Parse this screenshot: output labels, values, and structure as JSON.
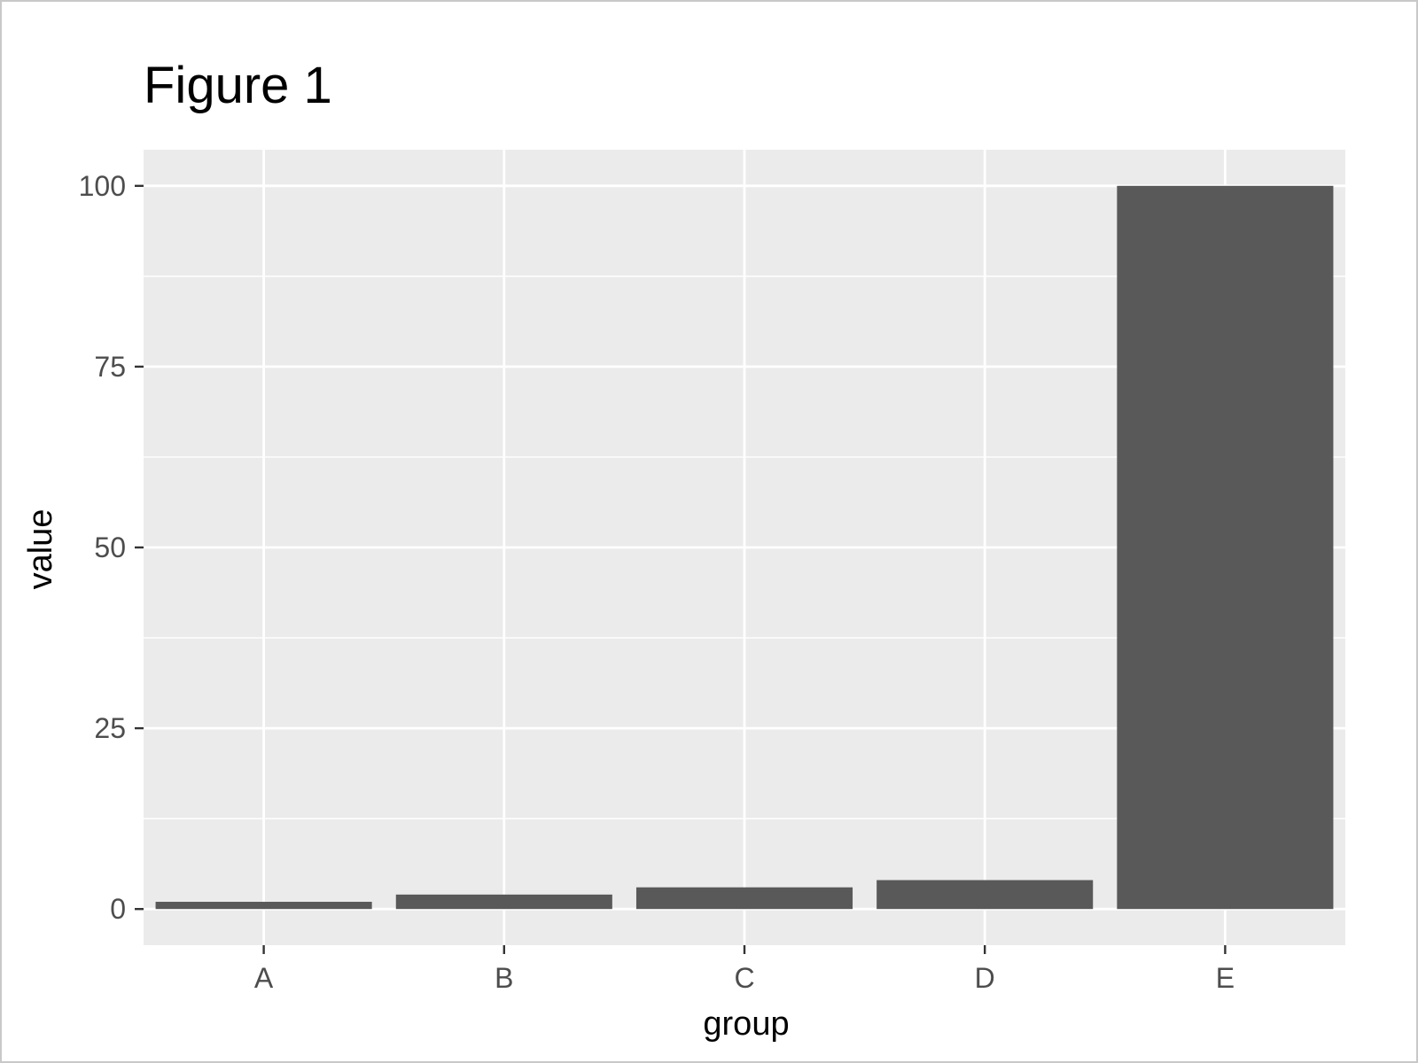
{
  "chart_data": {
    "type": "bar",
    "title": "Figure 1",
    "xlabel": "group",
    "ylabel": "value",
    "categories": [
      "A",
      "B",
      "C",
      "D",
      "E"
    ],
    "values": [
      1,
      2,
      3,
      4,
      100
    ],
    "ylim": [
      -5,
      105
    ],
    "yticks": [
      0,
      25,
      50,
      75,
      100
    ],
    "grid": true,
    "colors": {
      "bar": "#595959",
      "panel": "#ebebeb",
      "grid": "#ffffff",
      "tick": "#333333"
    }
  }
}
